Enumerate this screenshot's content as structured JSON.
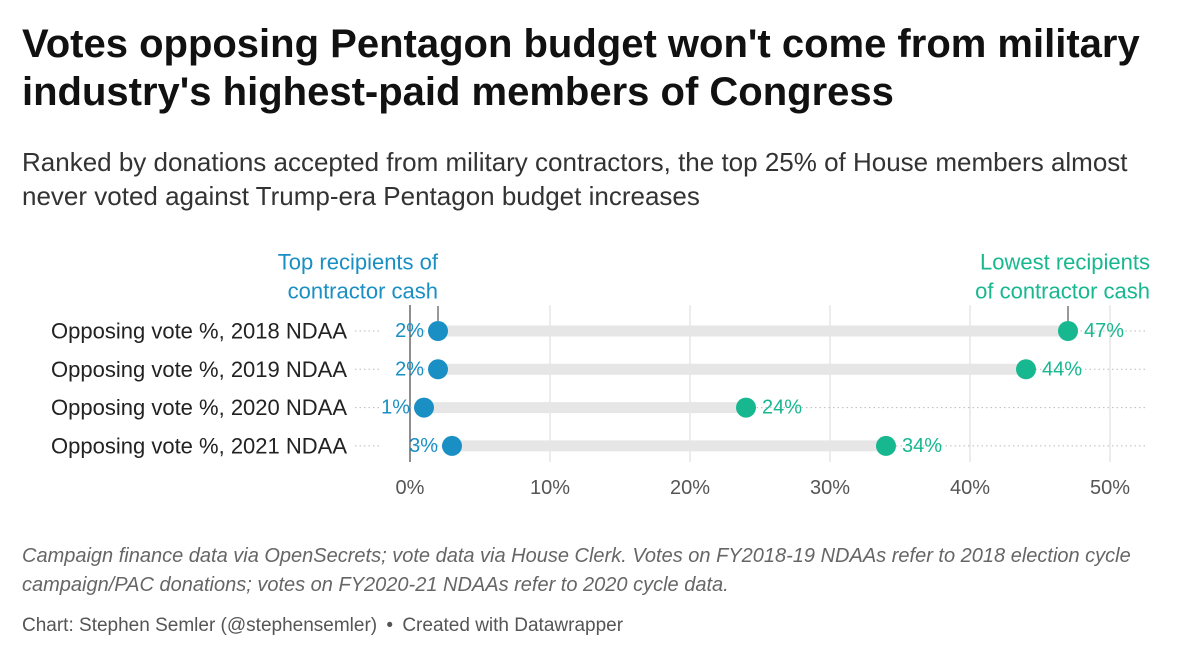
{
  "title": "Votes opposing Pentagon budget won't come from military industry's highest-paid members of Congress",
  "subtitle": "Ranked by donations accepted from military contractors, the top 25% of House members almost never voted against Trump-era Pentagon budget increases",
  "notes": "Campaign finance data via OpenSecrets; vote data via House Clerk. Votes on FY2018-19 NDAAs refer to 2018 election cycle campaign/PAC donations; votes on FY2020-21 NDAAs refer to 2020 cycle data.",
  "byline": {
    "author": "Chart: Stephen Semler (@stephensemler)",
    "separator": "•",
    "tool": "Created with Datawrapper"
  },
  "chart_data": {
    "type": "dot range",
    "categories": [
      "Opposing vote %, 2018 NDAA",
      "Opposing vote %, 2019 NDAA",
      "Opposing vote %, 2020 NDAA",
      "Opposing vote %, 2021 NDAA"
    ],
    "series": [
      {
        "name": "Top recipients of contractor cash",
        "label_lines": [
          "Top recipients of",
          "contractor cash"
        ],
        "color": "#1a8fc4",
        "values": [
          2,
          2,
          1,
          3
        ],
        "labels": [
          "2%",
          "2%",
          "1%",
          "3%"
        ]
      },
      {
        "name": "Lowest recipients of contractor cash",
        "label_lines": [
          "Lowest recipients",
          "of contractor cash"
        ],
        "color": "#17b890",
        "values": [
          47,
          44,
          24,
          34
        ],
        "labels": [
          "47%",
          "44%",
          "24%",
          "34%"
        ]
      }
    ],
    "x_ticks": [
      0,
      10,
      20,
      30,
      40,
      50
    ],
    "x_tick_labels": [
      "0%",
      "10%",
      "20%",
      "30%",
      "40%",
      "50%"
    ],
    "xlim": [
      0,
      50
    ],
    "grid": true,
    "range_color": "#e6e6e6",
    "grid_color": "#d9d9d9"
  }
}
